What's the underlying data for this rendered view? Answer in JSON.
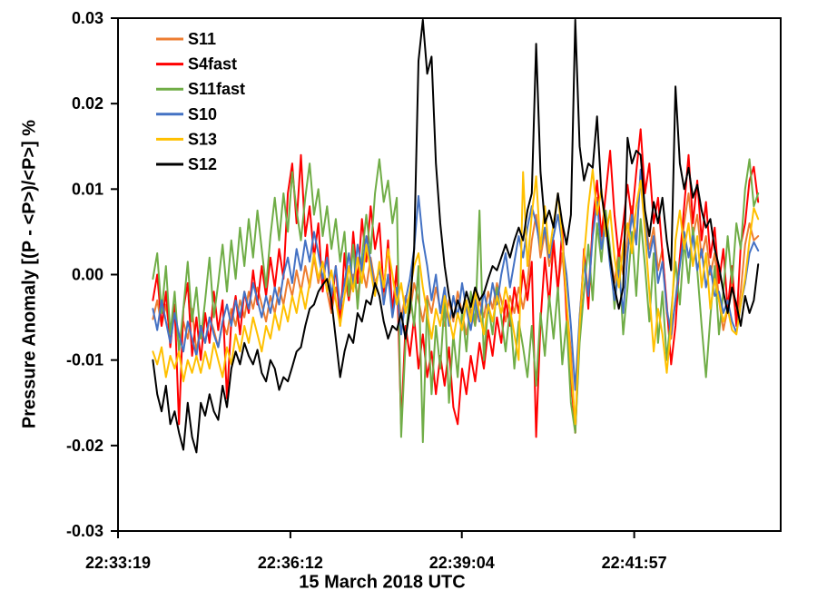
{
  "figure": {
    "background": "#ffffff",
    "frame_color": "#000000"
  },
  "chart_data": {
    "type": "line",
    "title": "",
    "xlabel": "15 March 2018 UTC",
    "ylabel": "Pressure Anomaly [(P - <P>)/<P>] %",
    "grid": false,
    "legend_position": "top-left-inside",
    "x_axis": {
      "kind": "time-of-day",
      "range_seconds": [
        0,
        665
      ],
      "ticks": [
        {
          "seconds": 0,
          "label": "22:33:19"
        },
        {
          "seconds": 173,
          "label": "22:36:12"
        },
        {
          "seconds": 345,
          "label": "22:39:04"
        },
        {
          "seconds": 518,
          "label": "22:41:57"
        }
      ]
    },
    "y_axis": {
      "range": [
        -0.03,
        0.03
      ],
      "ticks": [
        {
          "value": 0.03,
          "label": "0.03"
        },
        {
          "value": 0.02,
          "label": "0.02"
        },
        {
          "value": 0.01,
          "label": "0.01"
        },
        {
          "value": 0.0,
          "label": "0.00"
        },
        {
          "value": -0.01,
          "label": "-0.01"
        },
        {
          "value": -0.02,
          "label": "-0.02"
        },
        {
          "value": -0.03,
          "label": "-0.03"
        }
      ]
    },
    "sampling": {
      "start_seconds": 35,
      "step_seconds": 4.37,
      "value_scale": 0.0001
    },
    "series": [
      {
        "name": "S11",
        "color": "#ED7D31",
        "values": [
          -52,
          -30,
          -60,
          -35,
          -70,
          -45,
          -85,
          -55,
          -75,
          -40,
          -90,
          -60,
          -80,
          -50,
          -65,
          -85,
          -55,
          -70,
          -40,
          -60,
          -30,
          -50,
          -20,
          -40,
          -15,
          -35,
          -55,
          -25,
          -45,
          -15,
          -35,
          -5,
          -25,
          5,
          -20,
          10,
          -15,
          20,
          -10,
          15,
          -20,
          -45,
          -15,
          -35,
          -5,
          -30,
          0,
          -25,
          10,
          -15,
          20,
          -10,
          5,
          -25,
          -5,
          -35,
          -15,
          -50,
          -25,
          -45,
          -10,
          -30,
          -55,
          -25,
          -45,
          -15,
          -40,
          -60,
          -30,
          -55,
          -20,
          -45,
          -70,
          -40,
          -60,
          -30,
          -50,
          -20,
          -40,
          -10,
          -30,
          -55,
          -25,
          -45,
          -15,
          -40,
          -10,
          40,
          70,
          20,
          50,
          10,
          35,
          -15,
          25,
          -35,
          -90,
          -185,
          -50,
          20,
          -20,
          55,
          90,
          40,
          70,
          25,
          -10,
          30,
          0,
          45,
          80,
          40,
          120,
          65,
          30,
          55,
          5,
          30,
          -45,
          -75,
          -30,
          20,
          60,
          95,
          45,
          70,
          20,
          45,
          0,
          25,
          -30,
          -65,
          -40,
          -10,
          -55,
          -20,
          35,
          60,
          40,
          45
        ]
      },
      {
        "name": "S4fast",
        "color": "#FF0000",
        "values": [
          -30,
          0,
          -60,
          -20,
          -85,
          -35,
          -175,
          -40,
          -10,
          -95,
          -50,
          -100,
          -45,
          -80,
          -20,
          -65,
          -30,
          -145,
          -55,
          -25,
          -70,
          -20,
          -45,
          5,
          -35,
          10,
          -25,
          20,
          -15,
          30,
          -5,
          95,
          130,
          60,
          140,
          45,
          80,
          20,
          60,
          -20,
          35,
          -40,
          10,
          -60,
          25,
          -30,
          50,
          -10,
          65,
          15,
          80,
          30,
          60,
          -20,
          40,
          -45,
          10,
          -175,
          -60,
          -95,
          -50,
          -110,
          -70,
          -120,
          -90,
          -140,
          -95,
          -130,
          -85,
          -155,
          -175,
          -110,
          -140,
          -95,
          -125,
          -80,
          -110,
          -65,
          -95,
          -50,
          -80,
          -30,
          -60,
          -15,
          -45,
          5,
          -30,
          15,
          -190,
          -55,
          20,
          -35,
          40,
          -20,
          55,
          -50,
          -120,
          -185,
          -70,
          30,
          -40,
          60,
          110,
          45,
          95,
          145,
          70,
          20,
          60,
          105,
          65,
          120,
          170,
          95,
          130,
          60,
          90,
          25,
          -35,
          -105,
          -60,
          20,
          80,
          140,
          60,
          110,
          40,
          85,
          20,
          55,
          -10,
          30,
          -40,
          10,
          -60,
          35,
          60,
          110,
          126,
          85
        ]
      },
      {
        "name": "S11fast",
        "color": "#70AD47",
        "values": [
          -5,
          25,
          -45,
          10,
          -70,
          -20,
          -90,
          -40,
          15,
          -55,
          -15,
          -75,
          -30,
          20,
          -50,
          -10,
          35,
          -20,
          40,
          -5,
          55,
          10,
          65,
          20,
          75,
          30,
          -15,
          45,
          90,
          40,
          95,
          50,
          120,
          75,
          40,
          90,
          130,
          70,
          100,
          45,
          80,
          30,
          65,
          15,
          50,
          -25,
          35,
          -40,
          20,
          70,
          25,
          95,
          135,
          85,
          110,
          60,
          90,
          -190,
          -80,
          -20,
          -60,
          10,
          -196,
          -30,
          -140,
          -60,
          -110,
          -30,
          -150,
          -70,
          -120,
          -40,
          -90,
          -20,
          -60,
          75,
          -100,
          -35,
          -70,
          -15,
          -50,
          -90,
          -40,
          -110,
          -55,
          -85,
          -120,
          -60,
          -130,
          -45,
          -95,
          -25,
          -75,
          -15,
          -105,
          -55,
          -150,
          -185,
          -80,
          -20,
          35,
          -30,
          60,
          15,
          75,
          30,
          -40,
          20,
          -70,
          -15,
          50,
          -25,
          65,
          10,
          -55,
          25,
          -80,
          -20,
          -100,
          -45,
          15,
          -35,
          40,
          -10,
          55,
          5,
          -60,
          -120,
          -50,
          10,
          -70,
          -20,
          45,
          -10,
          60,
          30,
          100,
          135,
          80,
          95
        ]
      },
      {
        "name": "S10",
        "color": "#4472C4",
        "values": [
          -40,
          -65,
          -30,
          -55,
          -80,
          -45,
          -70,
          -90,
          -55,
          -75,
          -95,
          -60,
          -80,
          -50,
          -70,
          -85,
          -55,
          -35,
          -60,
          -30,
          -50,
          -20,
          -40,
          -10,
          -30,
          -50,
          -25,
          -45,
          -15,
          -35,
          0,
          20,
          -10,
          30,
          5,
          40,
          15,
          50,
          25,
          -5,
          20,
          -25,
          10,
          -40,
          -10,
          25,
          -15,
          35,
          5,
          45,
          15,
          -20,
          10,
          -35,
          0,
          -50,
          -15,
          -70,
          -30,
          -5,
          30,
          92,
          40,
          10,
          -30,
          0,
          -45,
          -15,
          -60,
          -25,
          -50,
          -10,
          -40,
          -65,
          -30,
          -55,
          -20,
          -45,
          -10,
          -35,
          0,
          25,
          -15,
          15,
          45,
          20,
          55,
          80,
          60,
          30,
          55,
          20,
          45,
          70,
          35,
          0,
          -60,
          -135,
          -50,
          15,
          -25,
          45,
          85,
          30,
          60,
          10,
          -30,
          5,
          -45,
          25,
          70,
          35,
          123,
          60,
          20,
          45,
          -10,
          15,
          -40,
          -70,
          -30,
          10,
          50,
          20,
          45,
          5,
          30,
          -15,
          10,
          -25,
          -20,
          -45,
          -30,
          -55,
          -68,
          -35,
          -10,
          25,
          38,
          28
        ]
      },
      {
        "name": "S13",
        "color": "#FFC000",
        "values": [
          -90,
          -105,
          -85,
          -120,
          -95,
          -110,
          -90,
          -125,
          -100,
          -115,
          -95,
          -115,
          -90,
          -110,
          -80,
          -100,
          -120,
          -85,
          -105,
          -70,
          -90,
          -60,
          -80,
          -50,
          -70,
          -90,
          -60,
          -75,
          -45,
          -65,
          -35,
          -55,
          -25,
          -45,
          -15,
          -40,
          -10,
          25,
          -5,
          15,
          -20,
          5,
          -30,
          -60,
          -25,
          10,
          -20,
          20,
          -10,
          35,
          5,
          -25,
          15,
          -15,
          30,
          0,
          -35,
          -10,
          -45,
          -20,
          10,
          25,
          -15,
          -45,
          -75,
          -40,
          -60,
          -25,
          -50,
          -75,
          -45,
          -65,
          -30,
          -55,
          -20,
          -45,
          -70,
          -35,
          -55,
          -25,
          -45,
          -15,
          -40,
          -70,
          -100,
          120,
          10,
          70,
          115,
          30,
          80,
          25,
          60,
          95,
          40,
          -30,
          -110,
          -175,
          -60,
          20,
          80,
          123,
          70,
          100,
          45,
          75,
          20,
          -15,
          35,
          60,
          25,
          80,
          110,
          50,
          -20,
          -90,
          -40,
          -70,
          -115,
          -60,
          40,
          75,
          30,
          60,
          10,
          45,
          -15,
          25,
          -40,
          -5,
          -30,
          -55,
          -40,
          -65,
          -70,
          -35,
          -5,
          40,
          78,
          65
        ]
      },
      {
        "name": "S12",
        "color": "#000000",
        "values": [
          -100,
          -140,
          -160,
          -130,
          -175,
          -160,
          -185,
          -205,
          -150,
          -190,
          -208,
          -150,
          -165,
          -140,
          -160,
          -170,
          -130,
          -155,
          -110,
          -90,
          -105,
          -80,
          -95,
          -105,
          -88,
          -115,
          -125,
          -100,
          -110,
          -135,
          -120,
          -125,
          -108,
          -90,
          -85,
          -60,
          -40,
          -35,
          -20,
          -12,
          -5,
          -30,
          -75,
          -120,
          -90,
          -70,
          -80,
          -45,
          -55,
          -30,
          -35,
          -10,
          -25,
          -55,
          -75,
          -60,
          -65,
          -45,
          -75,
          -40,
          30,
          250,
          298,
          235,
          255,
          130,
          60,
          10,
          -25,
          -50,
          -30,
          -45,
          -20,
          -38,
          -15,
          -30,
          -22,
          -5,
          10,
          5,
          20,
          35,
          20,
          40,
          55,
          40,
          75,
          95,
          270,
          120,
          60,
          75,
          55,
          95,
          60,
          35,
          70,
          298,
          150,
          110,
          130,
          125,
          185,
          95,
          60,
          20,
          -15,
          -40,
          -15,
          160,
          130,
          145,
          140,
          75,
          45,
          85,
          60,
          90,
          40,
          5,
          220,
          130,
          100,
          125,
          90,
          105,
          75,
          55,
          65,
          30,
          10,
          -20,
          -45,
          -15,
          -35,
          -60,
          -25,
          -45,
          -30,
          12
        ]
      }
    ],
    "legend": {
      "entries": [
        "S11",
        "S4fast",
        "S11fast",
        "S10",
        "S13",
        "S12"
      ]
    }
  }
}
